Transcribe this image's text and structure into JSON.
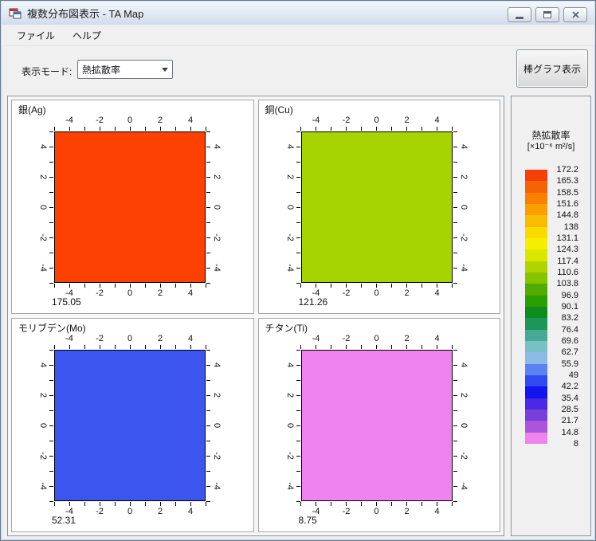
{
  "window": {
    "title": "複数分布図表示 - TA Map"
  },
  "menu": {
    "items": [
      {
        "label": "ファイル"
      },
      {
        "label": "ヘルプ"
      }
    ]
  },
  "toolbar": {
    "mode_label": "表示モード:",
    "mode_value": "熱拡散率",
    "bar_graph_button": "棒グラフ表示"
  },
  "axis": {
    "min": -5,
    "max": 5,
    "tick_step": 1,
    "labeled_values": [
      -4,
      -2,
      0,
      2,
      4
    ]
  },
  "panels": [
    {
      "title": "銀(Ag)",
      "value": "175.05",
      "color": "#fc4103"
    },
    {
      "title": "銅(Cu)",
      "value": "121.26",
      "color": "#a5d400"
    },
    {
      "title": "モリブデン(Mo)",
      "value": "52.31",
      "color": "#3c55ee"
    },
    {
      "title": "チタン(Ti)",
      "value": "8.75",
      "color": "#ee82ee"
    }
  ],
  "legend": {
    "title": "熱拡散率",
    "unit": "[×10⁻⁶ m²/s]",
    "labels": [
      "172.2",
      "165.3",
      "158.5",
      "151.6",
      "144.8",
      "138",
      "131.1",
      "124.3",
      "117.4",
      "110.6",
      "103.8",
      "96.9",
      "90.1",
      "83.2",
      "76.4",
      "69.6",
      "62.7",
      "55.9",
      "49",
      "42.2",
      "35.4",
      "28.5",
      "21.7",
      "14.8",
      "8"
    ],
    "colors": [
      "#f54009",
      "#f76207",
      "#fa8004",
      "#fa9e02",
      "#fabc00",
      "#fada00",
      "#f6ee00",
      "#d8e600",
      "#b0d400",
      "#84c400",
      "#50ac00",
      "#28a000",
      "#0e8c20",
      "#1e965a",
      "#46aa96",
      "#78c0c4",
      "#8cbce6",
      "#5a82f0",
      "#2e4af0",
      "#1414f0",
      "#4a28e6",
      "#7840d8",
      "#aa55dc",
      "#ee84ee"
    ]
  },
  "chart_data": [
    {
      "type": "heatmap",
      "title": "銀(Ag)",
      "uniform_value": 175.05,
      "value_label": "175.05",
      "color": "#fc4103",
      "x_range": [
        -5,
        5
      ],
      "y_range": [
        -5,
        5
      ],
      "tick_labels": [
        -4,
        -2,
        0,
        2,
        4
      ]
    },
    {
      "type": "heatmap",
      "title": "銅(Cu)",
      "uniform_value": 121.26,
      "value_label": "121.26",
      "color": "#a5d400",
      "x_range": [
        -5,
        5
      ],
      "y_range": [
        -5,
        5
      ],
      "tick_labels": [
        -4,
        -2,
        0,
        2,
        4
      ]
    },
    {
      "type": "heatmap",
      "title": "モリブデン(Mo)",
      "uniform_value": 52.31,
      "value_label": "52.31",
      "color": "#3c55ee",
      "x_range": [
        -5,
        5
      ],
      "y_range": [
        -5,
        5
      ],
      "tick_labels": [
        -4,
        -2,
        0,
        2,
        4
      ]
    },
    {
      "type": "heatmap",
      "title": "チタン(Ti)",
      "uniform_value": 8.75,
      "value_label": "8.75",
      "color": "#ee82ee",
      "x_range": [
        -5,
        5
      ],
      "y_range": [
        -5,
        5
      ],
      "tick_labels": [
        -4,
        -2,
        0,
        2,
        4
      ]
    },
    {
      "type": "colorbar",
      "title": "熱拡散率",
      "unit": "[×10⁻⁶ m²/s]",
      "scale_labels": [
        172.2,
        165.3,
        158.5,
        151.6,
        144.8,
        138,
        131.1,
        124.3,
        117.4,
        110.6,
        103.8,
        96.9,
        90.1,
        83.2,
        76.4,
        69.6,
        62.7,
        55.9,
        49,
        42.2,
        35.4,
        28.5,
        21.7,
        14.8,
        8
      ],
      "segment_colors": [
        "#f54009",
        "#f76207",
        "#fa8004",
        "#fa9e02",
        "#fabc00",
        "#fada00",
        "#f6ee00",
        "#d8e600",
        "#b0d400",
        "#84c400",
        "#50ac00",
        "#28a000",
        "#0e8c20",
        "#1e965a",
        "#46aa96",
        "#78c0c4",
        "#8cbce6",
        "#5a82f0",
        "#2e4af0",
        "#1414f0",
        "#4a28e6",
        "#7840d8",
        "#aa55dc",
        "#ee84ee"
      ]
    }
  ]
}
